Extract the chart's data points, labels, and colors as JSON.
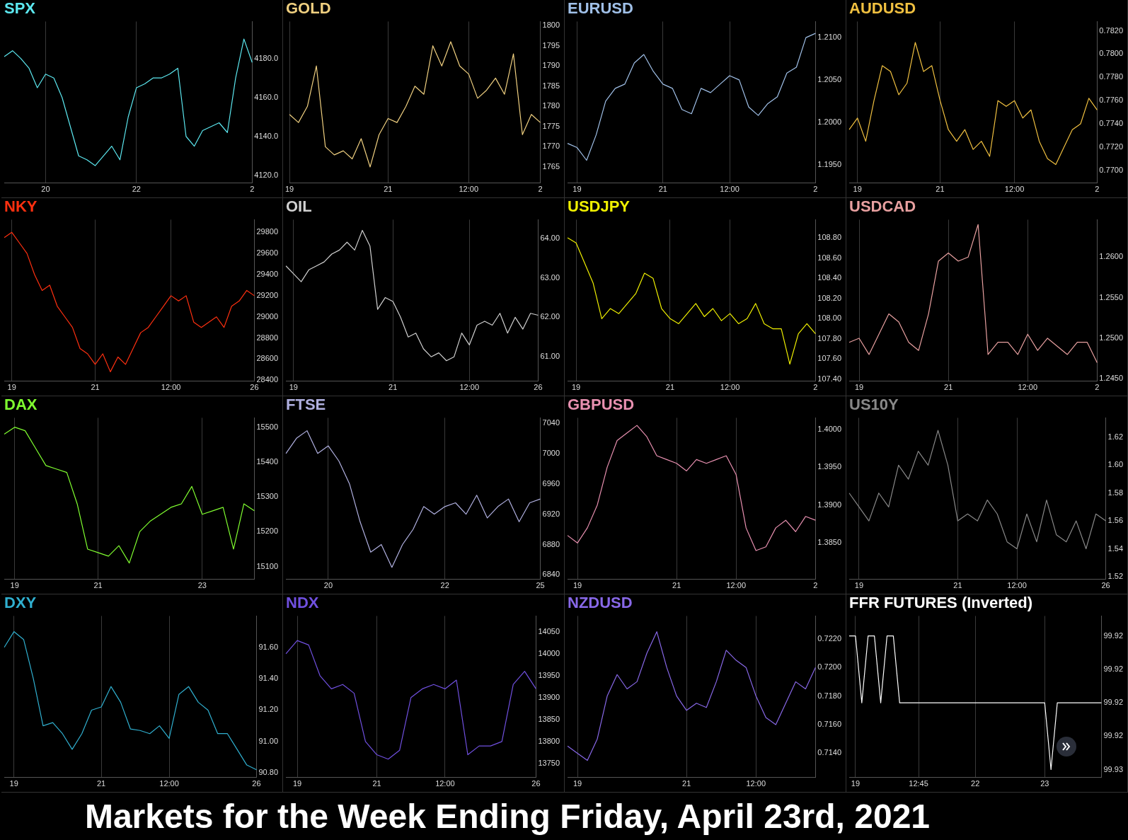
{
  "chart_data": [
    {
      "type": "line",
      "title": "SPX",
      "grid": "x",
      "categories": [
        null,
        null,
        null,
        null,
        null,
        "20",
        null,
        null,
        null,
        null,
        null,
        null,
        null,
        null,
        null,
        null,
        "22",
        null,
        null,
        null,
        null,
        null,
        null,
        null,
        null,
        null,
        null,
        null,
        null,
        null,
        "2"
      ],
      "ylim": [
        4116,
        4199
      ],
      "yticks": [
        {
          "value": 4120,
          "label": "4120.0"
        },
        {
          "value": 4140,
          "label": "4140.0"
        },
        {
          "value": 4160,
          "label": "4160.0"
        },
        {
          "value": 4180,
          "label": "4180.0"
        }
      ],
      "series": [
        {
          "color": "#5ce8f0",
          "values": [
            4181,
            4184,
            4180,
            4175,
            4165,
            4172,
            4170,
            4160,
            4145,
            4130,
            4128,
            4125,
            4130,
            4135,
            4128,
            4150,
            4165,
            4167,
            4170,
            4170,
            4172,
            4175,
            4140,
            4135,
            4143,
            4145,
            4147,
            4142,
            4170,
            4190,
            4178
          ]
        }
      ]
    },
    {
      "type": "line",
      "title": "GOLD",
      "grid": "x",
      "categories": [
        "19",
        null,
        null,
        null,
        null,
        null,
        null,
        null,
        null,
        null,
        null,
        "21",
        null,
        null,
        null,
        null,
        null,
        null,
        null,
        null,
        "12:00",
        null,
        null,
        null,
        null,
        null,
        null,
        null,
        "2"
      ],
      "ylim": [
        1761,
        1801
      ],
      "yticks": [
        1765,
        1770,
        1775,
        1780,
        1785,
        1790,
        1795,
        1800
      ],
      "series": [
        {
          "color": "#f0d080",
          "values": [
            1778,
            1776,
            1780,
            1790,
            1770,
            1768,
            1769,
            1767,
            1772,
            1765,
            1773,
            1777,
            1776,
            1780,
            1785,
            1783,
            1795,
            1790,
            1796,
            1790,
            1788,
            1782,
            1784,
            1787,
            1783,
            1793,
            1773,
            1778,
            1776
          ]
        }
      ]
    },
    {
      "type": "line",
      "title": "EURUSD",
      "grid": "x",
      "categories": [
        null,
        "19",
        null,
        null,
        null,
        null,
        null,
        null,
        null,
        null,
        "21",
        null,
        null,
        null,
        null,
        null,
        null,
        "12:00",
        null,
        null,
        null,
        null,
        null,
        null,
        null,
        null,
        "2"
      ],
      "ylim": [
        1.1928,
        1.2119
      ],
      "yticks": [
        {
          "value": 1.195,
          "label": "1.1950"
        },
        {
          "value": 1.2,
          "label": "1.2000"
        },
        {
          "value": 1.205,
          "label": "1.2050"
        },
        {
          "value": 1.21,
          "label": "1.2100"
        }
      ],
      "series": [
        {
          "color": "#a0c0e8",
          "values": [
            1.1975,
            1.197,
            1.1955,
            1.1985,
            1.2025,
            1.204,
            1.2045,
            1.207,
            1.208,
            1.206,
            1.2045,
            1.204,
            1.2015,
            1.201,
            1.204,
            1.2035,
            1.2045,
            1.2055,
            1.205,
            1.2018,
            1.2008,
            1.2022,
            1.203,
            1.2058,
            1.2065,
            1.21,
            1.2105
          ]
        }
      ]
    },
    {
      "type": "line",
      "title": "AUDUSD",
      "grid": "x",
      "categories": [
        null,
        "19",
        null,
        null,
        null,
        null,
        null,
        null,
        null,
        null,
        null,
        "21",
        null,
        null,
        null,
        null,
        null,
        null,
        null,
        null,
        "12:00",
        null,
        null,
        null,
        null,
        null,
        null,
        null,
        null,
        null,
        "2"
      ],
      "ylim": [
        0.7689,
        0.7828
      ],
      "yticks": [
        {
          "value": 0.77,
          "label": "0.7700"
        },
        {
          "value": 0.772,
          "label": "0.7720"
        },
        {
          "value": 0.774,
          "label": "0.7740"
        },
        {
          "value": 0.776,
          "label": "0.7760"
        },
        {
          "value": 0.778,
          "label": "0.7780"
        },
        {
          "value": 0.78,
          "label": "0.7800"
        },
        {
          "value": 0.782,
          "label": "0.7820"
        }
      ],
      "series": [
        {
          "color": "#f0c040",
          "values": [
            0.7735,
            0.7745,
            0.7725,
            0.776,
            0.779,
            0.7785,
            0.7765,
            0.7775,
            0.781,
            0.7785,
            0.779,
            0.776,
            0.7735,
            0.7725,
            0.7735,
            0.7718,
            0.7725,
            0.7712,
            0.776,
            0.7755,
            0.776,
            0.7745,
            0.7752,
            0.7725,
            0.771,
            0.7705,
            0.772,
            0.7735,
            0.774,
            0.7762,
            0.7752
          ]
        }
      ]
    },
    {
      "type": "line",
      "title": "NKY",
      "grid": "x",
      "categories": [
        null,
        "19",
        null,
        null,
        null,
        null,
        null,
        null,
        null,
        null,
        null,
        null,
        "21",
        null,
        null,
        null,
        null,
        null,
        null,
        null,
        null,
        null,
        "12:00",
        null,
        null,
        null,
        null,
        null,
        null,
        null,
        null,
        null,
        null,
        "26"
      ],
      "ylim": [
        28390,
        29920
      ],
      "yticks": [
        28400,
        28600,
        28800,
        29000,
        29200,
        29400,
        29600,
        29800
      ],
      "series": [
        {
          "color": "#ff3010",
          "values": [
            29750,
            29800,
            29700,
            29600,
            29400,
            29250,
            29300,
            29100,
            29000,
            28900,
            28700,
            28650,
            28550,
            28650,
            28480,
            28620,
            28550,
            28700,
            28850,
            28900,
            29000,
            29100,
            29200,
            29150,
            29200,
            28950,
            28900,
            28950,
            29000,
            28900,
            29100,
            29150,
            29250,
            29200
          ]
        }
      ]
    },
    {
      "type": "line",
      "title": "OIL",
      "grid": "x",
      "categories": [
        null,
        "19",
        null,
        null,
        null,
        null,
        null,
        null,
        null,
        null,
        null,
        null,
        null,
        null,
        "21",
        null,
        null,
        null,
        null,
        null,
        null,
        null,
        null,
        null,
        "12:00",
        null,
        null,
        null,
        null,
        null,
        null,
        null,
        null,
        "26"
      ],
      "ylim": [
        60.38,
        64.47
      ],
      "yticks": [
        {
          "value": 61,
          "label": "61.00"
        },
        {
          "value": 62,
          "label": "62.00"
        },
        {
          "value": 63,
          "label": "63.00"
        },
        {
          "value": 64,
          "label": "64.00"
        }
      ],
      "series": [
        {
          "color": "#d0d0d0",
          "values": [
            63.3,
            63.1,
            62.9,
            63.2,
            63.3,
            63.4,
            63.6,
            63.7,
            63.9,
            63.7,
            64.2,
            63.8,
            62.2,
            62.5,
            62.4,
            62,
            61.5,
            61.6,
            61.2,
            61,
            61.1,
            60.9,
            61,
            61.6,
            61.3,
            61.8,
            61.9,
            61.8,
            62.1,
            61.6,
            62,
            61.7,
            62.1,
            62.05
          ]
        }
      ]
    },
    {
      "type": "line",
      "title": "USDJPY",
      "grid": "x",
      "categories": [
        null,
        "19",
        null,
        null,
        null,
        null,
        null,
        null,
        null,
        null,
        null,
        null,
        "21",
        null,
        null,
        null,
        null,
        null,
        null,
        "12:00",
        null,
        null,
        null,
        null,
        null,
        null,
        null,
        null,
        null,
        "2"
      ],
      "ylim": [
        107.38,
        108.98
      ],
      "yticks": [
        {
          "value": 107.4,
          "label": "107.40"
        },
        {
          "value": 107.6,
          "label": "107.60"
        },
        {
          "value": 107.8,
          "label": "107.80"
        },
        {
          "value": 108,
          "label": "108.00"
        },
        {
          "value": 108.2,
          "label": "108.20"
        },
        {
          "value": 108.4,
          "label": "108.40"
        },
        {
          "value": 108.6,
          "label": "108.60"
        },
        {
          "value": 108.8,
          "label": "108.80"
        }
      ],
      "series": [
        {
          "color": "#f0f000",
          "values": [
            108.8,
            108.75,
            108.55,
            108.35,
            108,
            108.1,
            108.05,
            108.15,
            108.25,
            108.45,
            108.4,
            108.1,
            108,
            107.95,
            108.05,
            108.15,
            108.02,
            108.1,
            107.98,
            108.05,
            107.95,
            108,
            108.15,
            107.95,
            107.9,
            107.9,
            107.55,
            107.85,
            107.95,
            107.85
          ]
        }
      ]
    },
    {
      "type": "line",
      "title": "USDCAD",
      "grid": "x",
      "categories": [
        null,
        "19",
        null,
        null,
        null,
        null,
        null,
        null,
        null,
        null,
        "21",
        null,
        null,
        null,
        null,
        null,
        null,
        null,
        "12:00",
        null,
        null,
        null,
        null,
        null,
        null,
        "2"
      ],
      "ylim": [
        1.2447,
        1.2646
      ],
      "yticks": [
        {
          "value": 1.245,
          "label": "1.2450"
        },
        {
          "value": 1.25,
          "label": "1.2500"
        },
        {
          "value": 1.255,
          "label": "1.2550"
        },
        {
          "value": 1.26,
          "label": "1.2600"
        }
      ],
      "series": [
        {
          "color": "#e8a0a0",
          "values": [
            1.2495,
            1.25,
            1.248,
            1.2505,
            1.253,
            1.252,
            1.2495,
            1.2485,
            1.253,
            1.2595,
            1.2605,
            1.2595,
            1.26,
            1.264,
            1.248,
            1.2495,
            1.2495,
            1.248,
            1.2505,
            1.2485,
            1.25,
            1.249,
            1.248,
            1.2495,
            1.2495,
            1.247
          ]
        }
      ]
    },
    {
      "type": "line",
      "title": "DAX",
      "grid": "x",
      "categories": [
        null,
        "19",
        null,
        null,
        null,
        null,
        null,
        null,
        null,
        "21",
        null,
        null,
        null,
        null,
        null,
        null,
        null,
        null,
        null,
        "23",
        null,
        null,
        null,
        null,
        null
      ],
      "ylim": [
        15063,
        15527
      ],
      "yticks": [
        15100,
        15200,
        15300,
        15400,
        15500
      ],
      "series": [
        {
          "color": "#80ff30",
          "values": [
            15480,
            15500,
            15490,
            15440,
            15390,
            15380,
            15370,
            15280,
            15150,
            15140,
            15130,
            15160,
            15110,
            15200,
            15230,
            15250,
            15270,
            15280,
            15330,
            15250,
            15260,
            15270,
            15150,
            15280,
            15260
          ]
        }
      ]
    },
    {
      "type": "line",
      "title": "FTSE",
      "grid": "x",
      "categories": [
        null,
        null,
        null,
        null,
        "20",
        null,
        null,
        null,
        null,
        null,
        null,
        null,
        null,
        null,
        null,
        "22",
        null,
        null,
        null,
        null,
        null,
        null,
        null,
        null,
        "25"
      ],
      "ylim": [
        6834,
        7047
      ],
      "yticks": [
        6840,
        6880,
        6920,
        6960,
        7000,
        7040
      ],
      "series": [
        {
          "color": "#b0b0e0",
          "values": [
            7000,
            7020,
            7030,
            7000,
            7010,
            6990,
            6960,
            6910,
            6870,
            6880,
            6850,
            6880,
            6900,
            6930,
            6920,
            6930,
            6935,
            6920,
            6945,
            6915,
            6930,
            6940,
            6910,
            6935,
            6940
          ]
        }
      ]
    },
    {
      "type": "line",
      "title": "GBPUSD",
      "grid": "x",
      "categories": [
        null,
        "19",
        null,
        null,
        null,
        null,
        null,
        null,
        null,
        null,
        null,
        "21",
        null,
        null,
        null,
        null,
        null,
        "12:00",
        null,
        null,
        null,
        null,
        null,
        null,
        null,
        "2"
      ],
      "ylim": [
        1.3802,
        1.4015
      ],
      "yticks": [
        {
          "value": 1.385,
          "label": "1.3850"
        },
        {
          "value": 1.39,
          "label": "1.3900"
        },
        {
          "value": 1.395,
          "label": "1.3950"
        },
        {
          "value": 1.4,
          "label": "1.4000"
        }
      ],
      "series": [
        {
          "color": "#e890b0",
          "values": [
            1.386,
            1.385,
            1.387,
            1.39,
            1.395,
            1.3985,
            1.3995,
            1.4005,
            1.399,
            1.3965,
            1.396,
            1.3955,
            1.3945,
            1.396,
            1.3955,
            1.396,
            1.3965,
            1.394,
            1.387,
            1.384,
            1.3845,
            1.387,
            1.388,
            1.3865,
            1.3885,
            1.388
          ]
        }
      ]
    },
    {
      "type": "line",
      "title": "US10Y",
      "grid": "x",
      "categories": [
        null,
        "19",
        null,
        null,
        null,
        null,
        null,
        null,
        null,
        null,
        null,
        "21",
        null,
        null,
        null,
        null,
        null,
        "12:00",
        null,
        null,
        null,
        null,
        null,
        null,
        null,
        null,
        "26"
      ],
      "ylim": [
        1.518,
        1.634
      ],
      "yticks": [
        1.52,
        1.54,
        1.56,
        1.58,
        {
          "value": 1.6,
          "label": "1.60"
        },
        1.62
      ],
      "series": [
        {
          "color": "#888888",
          "values": [
            1.58,
            1.57,
            1.56,
            1.58,
            1.57,
            1.6,
            1.59,
            1.61,
            1.6,
            1.625,
            1.6,
            1.56,
            1.565,
            1.56,
            1.575,
            1.565,
            1.545,
            1.54,
            1.565,
            1.545,
            1.575,
            1.55,
            1.545,
            1.56,
            1.54,
            1.565,
            1.56
          ]
        }
      ]
    },
    {
      "type": "line",
      "title": "DXY",
      "grid": "x",
      "categories": [
        null,
        "19",
        null,
        null,
        null,
        null,
        null,
        null,
        null,
        null,
        "21",
        null,
        null,
        null,
        null,
        null,
        null,
        "12:00",
        null,
        null,
        null,
        null,
        null,
        null,
        null,
        null,
        "26"
      ],
      "ylim": [
        90.77,
        91.8
      ],
      "yticks": [
        {
          "value": 90.8,
          "label": "90.80"
        },
        {
          "value": 91,
          "label": "91.00"
        },
        {
          "value": 91.2,
          "label": "91.20"
        },
        {
          "value": 91.4,
          "label": "91.40"
        },
        {
          "value": 91.6,
          "label": "91.60"
        }
      ],
      "series": [
        {
          "color": "#30b0d0",
          "values": [
            91.6,
            91.7,
            91.65,
            91.4,
            91.1,
            91.12,
            91.05,
            90.95,
            91.05,
            91.2,
            91.22,
            91.35,
            91.25,
            91.08,
            91.07,
            91.05,
            91.1,
            91.02,
            91.3,
            91.35,
            91.25,
            91.2,
            91.05,
            91.05,
            90.95,
            90.85,
            90.82
          ]
        }
      ]
    },
    {
      "type": "line",
      "title": "NDX",
      "grid": "x",
      "categories": [
        null,
        "19",
        null,
        null,
        null,
        null,
        null,
        null,
        "21",
        null,
        null,
        null,
        null,
        null,
        "12:00",
        null,
        null,
        null,
        null,
        null,
        null,
        null,
        "26"
      ],
      "ylim": [
        13718,
        14086
      ],
      "yticks": [
        13750,
        13800,
        13850,
        13900,
        13950,
        14000,
        14050
      ],
      "series": [
        {
          "color": "#7050e0",
          "values": [
            14000,
            14030,
            14020,
            13950,
            13920,
            13930,
            13910,
            13800,
            13770,
            13760,
            13780,
            13900,
            13920,
            13930,
            13920,
            13940,
            13770,
            13790,
            13790,
            13800,
            13930,
            13960,
            13920
          ]
        }
      ]
    },
    {
      "type": "line",
      "title": "NZDUSD",
      "grid": "x",
      "categories": [
        null,
        "19",
        null,
        null,
        null,
        null,
        null,
        null,
        null,
        null,
        null,
        null,
        "21",
        null,
        null,
        null,
        null,
        null,
        null,
        "12:00",
        null,
        null,
        null,
        null,
        null,
        null
      ],
      "ylim": [
        0.7123,
        0.7236
      ],
      "yticks": [
        {
          "value": 0.714,
          "label": "0.7140"
        },
        {
          "value": 0.716,
          "label": "0.7160"
        },
        {
          "value": 0.718,
          "label": "0.7180"
        },
        {
          "value": 0.72,
          "label": "0.7200"
        },
        {
          "value": 0.722,
          "label": "0.7220"
        }
      ],
      "series": [
        {
          "color": "#8868e8",
          "values": [
            0.7145,
            0.714,
            0.7135,
            0.715,
            0.718,
            0.7195,
            0.7185,
            0.719,
            0.721,
            0.7225,
            0.72,
            0.718,
            0.717,
            0.7175,
            0.7172,
            0.719,
            0.7212,
            0.7205,
            0.72,
            0.718,
            0.7165,
            0.716,
            0.7175,
            0.719,
            0.7185,
            0.72
          ]
        }
      ]
    },
    {
      "type": "line",
      "title": "FFR FUTURES (Inverted)",
      "grid": "x",
      "categories": [
        null,
        "19",
        null,
        null,
        null,
        null,
        null,
        null,
        null,
        null,
        null,
        "12:45",
        null,
        null,
        null,
        null,
        null,
        null,
        null,
        null,
        "22",
        null,
        null,
        null,
        null,
        null,
        null,
        null,
        null,
        null,
        null,
        "23",
        null,
        null,
        null,
        null,
        null,
        null,
        null,
        null,
        null
      ],
      "ylim": [
        99.9256,
        99.9135
      ],
      "yticks": [
        {
          "value": 99.915,
          "label": "99.92"
        },
        {
          "value": 99.9175,
          "label": "99.92"
        },
        {
          "value": 99.92,
          "label": "99.92"
        },
        {
          "value": 99.9225,
          "label": "99.92"
        },
        {
          "value": 99.925,
          "label": "99.93"
        }
      ],
      "series": [
        {
          "color": "#ffffff",
          "values": [
            99.915,
            99.915,
            99.92,
            99.915,
            99.915,
            99.92,
            99.915,
            99.915,
            99.92,
            99.92,
            99.92,
            99.92,
            99.92,
            99.92,
            99.92,
            99.92,
            99.92,
            99.92,
            99.92,
            99.92,
            99.92,
            99.92,
            99.92,
            99.92,
            99.92,
            99.92,
            99.92,
            99.92,
            99.92,
            99.92,
            99.92,
            99.92,
            99.925,
            99.92,
            99.92,
            99.92,
            99.92,
            99.92,
            99.92,
            99.92,
            99.92
          ]
        }
      ]
    },
    {
      "type": "other",
      "title": "Markets for the Week Ending Friday, April 23rd, 2021"
    }
  ]
}
